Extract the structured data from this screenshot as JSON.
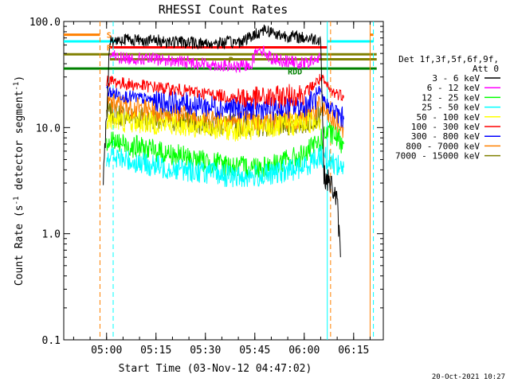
{
  "chart_data": {
    "type": "line",
    "title": "RHESSI Count Rates",
    "xlabel": "Start Time (03-Nov-12 04:47:02)",
    "ylabel": "Count Rate (s^-1 detector segment^-1)",
    "yscale": "log",
    "ylim": [
      0.1,
      100.0
    ],
    "xlim_minutes_after_0447": [
      0,
      97
    ],
    "x_ticks": [
      "05:00",
      "05:15",
      "05:30",
      "05:45",
      "06:00",
      "06:15"
    ],
    "y_ticks": [
      "0.1",
      "1.0",
      "10.0",
      "100.0"
    ],
    "legend_header": [
      "Det 1f,3f,5f,6f,9f,",
      "Att 0"
    ],
    "legend_position": "right",
    "series": [
      {
        "name": "3 - 6 keV",
        "color": "#000000",
        "x": [
          "04:59",
          "05:01",
          "05:05",
          "05:15",
          "05:30",
          "05:40",
          "05:44",
          "05:48",
          "05:52",
          "06:00",
          "06:05",
          "06:06",
          "06:08",
          "06:09",
          "06:10",
          "06:11"
        ],
        "y": [
          3.0,
          65,
          68,
          66,
          62,
          64,
          72,
          85,
          75,
          70,
          68,
          3.5,
          3.0,
          2.5,
          2.0,
          0.6
        ]
      },
      {
        "name": "6 - 12 keV",
        "color": "#ff00ff",
        "x": [
          "05:01",
          "05:05",
          "05:15",
          "05:30",
          "05:40",
          "05:44",
          "05:46",
          "05:50",
          "05:55",
          "06:00",
          "06:05"
        ],
        "y": [
          48,
          45,
          44,
          40,
          37,
          40,
          58,
          45,
          42,
          40,
          45
        ]
      },
      {
        "name": "12 - 25 keV",
        "color": "#00ff00",
        "x": [
          "05:00",
          "05:05",
          "05:15",
          "05:30",
          "05:40",
          "05:50",
          "06:00",
          "06:05",
          "06:07",
          "06:10",
          "06:12"
        ],
        "y": [
          7.5,
          7.0,
          6.0,
          4.8,
          4.2,
          4.4,
          5.5,
          7.5,
          9.0,
          8.0,
          7.0
        ]
      },
      {
        "name": "25 - 50 keV",
        "color": "#00ffff",
        "x": [
          "05:00",
          "05:05",
          "05:15",
          "05:30",
          "05:40",
          "05:50",
          "06:00",
          "06:05",
          "06:07",
          "06:10",
          "06:12"
        ],
        "y": [
          5.5,
          5.0,
          4.3,
          3.8,
          3.4,
          3.6,
          4.3,
          5.5,
          5.0,
          4.5,
          4.2
        ]
      },
      {
        "name": "50 - 100 keV",
        "color": "#ffff00",
        "x": [
          "05:00",
          "05:05",
          "05:15",
          "05:30",
          "05:40",
          "05:50",
          "06:00",
          "06:05"
        ],
        "y": [
          12,
          11.5,
          11,
          10,
          9.5,
          10,
          11,
          12
        ]
      },
      {
        "name": "100 - 300 keV",
        "color": "#ff0000",
        "x": [
          "05:00",
          "05:05",
          "05:15",
          "05:30",
          "05:40",
          "05:50",
          "06:00",
          "06:05",
          "06:08",
          "06:12"
        ],
        "y": [
          28,
          26,
          24,
          21,
          19,
          19,
          21,
          29,
          22,
          20
        ]
      },
      {
        "name": "300 - 800 keV",
        "color": "#0000ff",
        "x": [
          "05:00",
          "05:05",
          "05:15",
          "05:30",
          "05:40",
          "05:50",
          "06:00",
          "06:05",
          "06:08",
          "06:12"
        ],
        "y": [
          22,
          20,
          18,
          16,
          15,
          15,
          16,
          20,
          15,
          12
        ]
      },
      {
        "name": "800 - 7000 keV",
        "color": "#ff8000",
        "x": [
          "05:00",
          "05:05",
          "05:15",
          "05:30",
          "05:40",
          "05:50",
          "06:00",
          "06:05",
          "06:08",
          "06:12"
        ],
        "y": [
          17,
          16,
          14,
          12.5,
          11.5,
          11.5,
          12.5,
          16,
          12,
          10
        ]
      },
      {
        "name": "7000 - 15000 keV",
        "color": "#808000",
        "x": [
          "05:00",
          "05:05",
          "05:15",
          "05:30",
          "05:40",
          "05:50",
          "06:00",
          "06:05"
        ],
        "y": [
          14,
          13,
          12,
          11,
          10.5,
          10.5,
          11,
          13
        ]
      }
    ],
    "annotations": [
      {
        "text": "S",
        "color": "#ff8000",
        "x": "05:00",
        "y": 75
      },
      {
        "text": "F",
        "color": "#ff8000",
        "x": "05:00",
        "y": 57
      },
      {
        "text": "P",
        "color": "#808000",
        "x": "05:37",
        "y": 44
      },
      {
        "text": "P",
        "color": "#ff00ff",
        "x": "05:58",
        "y": 38
      },
      {
        "text": "RDD",
        "color": "#008000",
        "x": "05:55",
        "y": 34
      }
    ],
    "reference_lines": [
      {
        "color": "#ff8000",
        "y": 75,
        "x_range": [
          "04:47",
          "04:58"
        ]
      },
      {
        "color": "#ff8000",
        "y": 75,
        "x_range": [
          "06:20",
          "06:21"
        ]
      },
      {
        "color": "#00ffff",
        "y": 65,
        "x_range": [
          "04:47",
          "05:03"
        ]
      },
      {
        "color": "#00ffff",
        "y": 65,
        "x_range": [
          "06:07",
          "06:21"
        ]
      },
      {
        "color": "#ff0000",
        "y": 57,
        "x_range": [
          "05:01",
          "06:07"
        ]
      },
      {
        "color": "#808000",
        "y": 49,
        "x_range": [
          "04:47",
          "06:22"
        ]
      },
      {
        "color": "#808000",
        "y": 44,
        "x_range": [
          "05:01",
          "06:22"
        ]
      },
      {
        "color": "#008000",
        "y": 36,
        "x_range": [
          "04:47",
          "06:22"
        ]
      }
    ],
    "vertical_markers": [
      {
        "color": "#ff8000",
        "dash": true,
        "x": "04:58"
      },
      {
        "color": "#00ffff",
        "dash": true,
        "x": "05:02"
      },
      {
        "color": "#00ffff",
        "dash": false,
        "x": "06:07"
      },
      {
        "color": "#ff8000",
        "dash": true,
        "x": "06:08"
      },
      {
        "color": "#ff8000",
        "dash": false,
        "x": "06:20"
      },
      {
        "color": "#00ffff",
        "dash": true,
        "x": "06:21"
      }
    ]
  },
  "footer_timestamp": "20-Oct-2021 10:27"
}
